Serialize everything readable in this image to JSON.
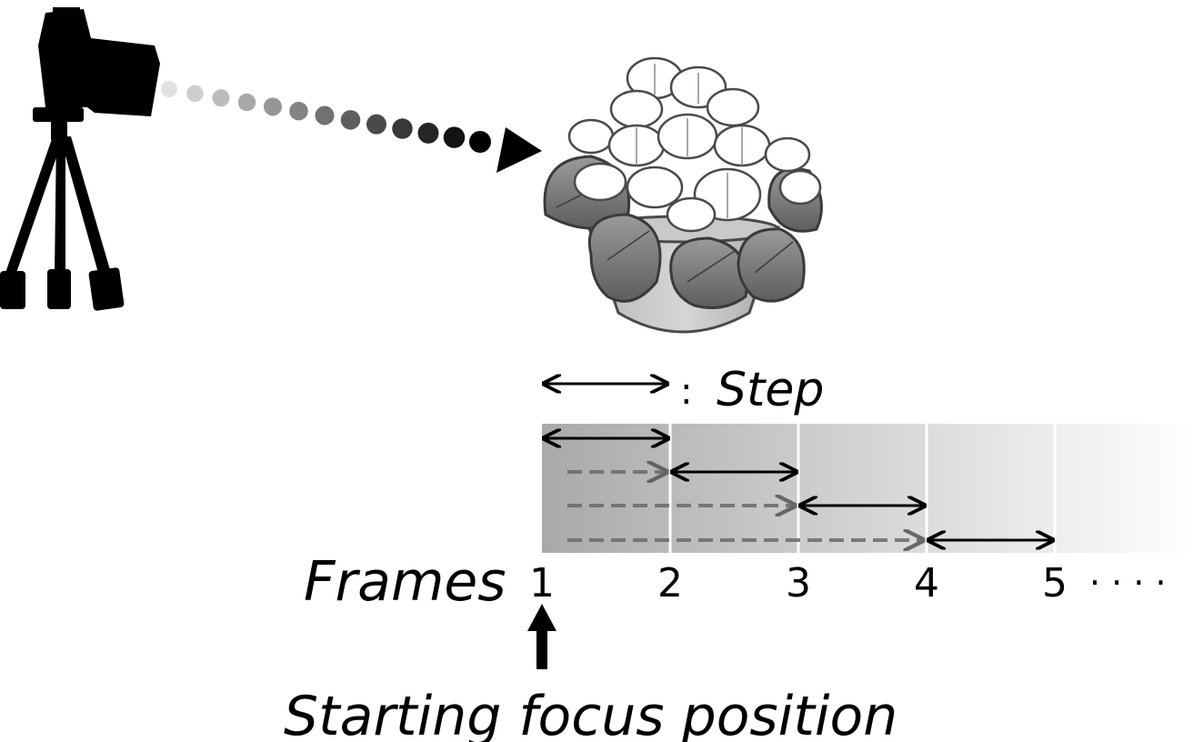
{
  "legend": {
    "separator": ":",
    "step_label": "Step"
  },
  "frames_label": "Frames",
  "frame_numbers": [
    "1",
    "2",
    "3",
    "4",
    "5"
  ],
  "ellipsis": "· · · ·",
  "caption": "Starting focus position",
  "icons": {
    "camera": "camera-on-tripod-icon",
    "subject": "flower-pot-icon",
    "focus_direction": "dotted-arrow-icon",
    "start_marker": "up-arrow-icon"
  },
  "colors": {
    "ink": "#000000",
    "band_start": "#a9a9a9",
    "band_end": "#ffffff"
  }
}
